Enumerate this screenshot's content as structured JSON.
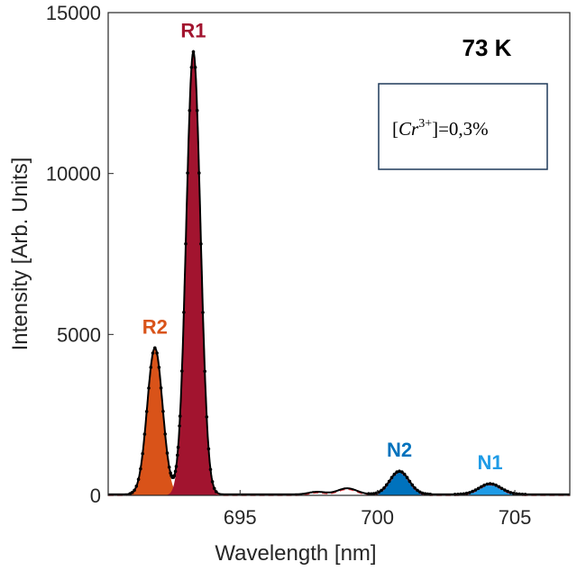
{
  "chart_data": {
    "type": "area",
    "xlabel": "Wavelength [nm]",
    "ylabel": "Intensity [Arb. Units]",
    "xlim": [
      690.2,
      707.0
    ],
    "ylim": [
      0,
      15000
    ],
    "xticks": [
      695,
      700,
      705
    ],
    "xtick_labels": [
      "695",
      "700",
      "705"
    ],
    "yticks": [
      0,
      5000,
      10000,
      15000
    ],
    "ytick_labels": [
      "0",
      "5000",
      "10000",
      "15000"
    ],
    "grid": false,
    "temperature_label": "73 K",
    "concentration_label": {
      "prefix": "[",
      "ion": "Cr",
      "superscript": "3+",
      "suffix": "]=0,3%"
    },
    "peaks": [
      {
        "label": "R2",
        "center": 691.9,
        "width": 0.28,
        "amplitude": 4550,
        "color": "#D95319"
      },
      {
        "label": "R1",
        "center": 693.3,
        "width": 0.26,
        "amplitude": 13750,
        "color": "#A2142F"
      },
      {
        "label": "N2",
        "center": 700.8,
        "width": 0.35,
        "amplitude": 720,
        "color": "#0072BD"
      },
      {
        "label": "N1",
        "center": 704.1,
        "width": 0.4,
        "amplitude": 330,
        "color": "#1E9BE6"
      }
    ],
    "minor_features": [
      {
        "center": 697.8,
        "width": 0.3,
        "amplitude": 80
      },
      {
        "center": 698.9,
        "width": 0.35,
        "amplitude": 190
      }
    ],
    "baseline": 30,
    "series": [
      {
        "style": "measured",
        "color": "#000000"
      },
      {
        "style": "fit",
        "color": "#E8333A"
      }
    ]
  }
}
